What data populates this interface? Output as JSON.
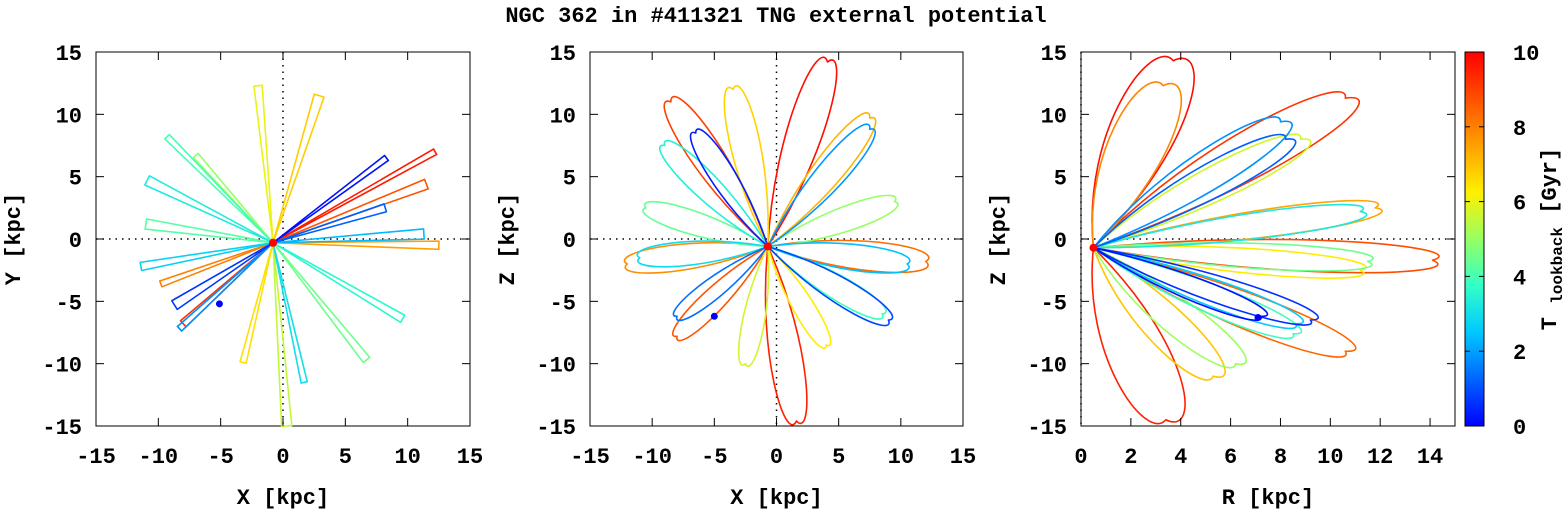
{
  "title": "NGC 362 in #411321 TNG external potential",
  "colorbar": {
    "label_main": "T",
    "label_sub": "lookback",
    "label_unit": "[Gyr]",
    "range": [
      0,
      10
    ],
    "ticks": [
      "0",
      "2",
      "4",
      "6",
      "8",
      "10"
    ],
    "tick_values": [
      0,
      2,
      4,
      6,
      8,
      10
    ],
    "colors": [
      "#0000ff",
      "#0064ff",
      "#00c8ff",
      "#32ffc8",
      "#96ff64",
      "#fff000",
      "#ffa000",
      "#ff5000",
      "#ff0000"
    ]
  },
  "markers": {
    "present_color": "#0000ff",
    "start_color": "#ff0000"
  },
  "chart_data": [
    {
      "type": "line",
      "panel": "X-Y",
      "xlabel": "X [kpc]",
      "ylabel": "Y [kpc]",
      "xlim": [
        -15,
        15
      ],
      "ylim": [
        -15,
        15
      ],
      "xticks": [
        "-15",
        "-10",
        "-5",
        "0",
        "5",
        "10",
        "15"
      ],
      "xtick_values": [
        -15,
        -10,
        -5,
        0,
        5,
        10,
        15
      ],
      "yticks": [
        "-15",
        "-10",
        "-5",
        "0",
        "5",
        "10",
        "15"
      ],
      "ytick_values": [
        -15,
        -10,
        -5,
        0,
        5,
        10,
        15
      ],
      "zero_axes": true,
      "present_position": [
        -5.1,
        -5.2
      ],
      "start_position": [
        -0.8,
        -0.3
      ],
      "series": [
        {
          "name": "radial excursion",
          "t": 9.6,
          "end": [
            12.2,
            7.0
          ]
        },
        {
          "name": "radial excursion",
          "t": 9.2,
          "end": [
            -8.0,
            -6.8
          ]
        },
        {
          "name": "radial excursion",
          "t": 8.7,
          "end": [
            11.5,
            4.4
          ]
        },
        {
          "name": "radial excursion",
          "t": 8.0,
          "end": [
            -9.8,
            -3.6
          ]
        },
        {
          "name": "radial excursion",
          "t": 7.5,
          "end": [
            12.5,
            -0.5
          ]
        },
        {
          "name": "radial excursion",
          "t": 6.8,
          "end": [
            2.9,
            11.5
          ]
        },
        {
          "name": "radial excursion",
          "t": 6.5,
          "end": [
            -3.2,
            -9.9
          ]
        },
        {
          "name": "radial excursion",
          "t": 6.0,
          "end": [
            -2.0,
            12.3
          ]
        },
        {
          "name": "radial excursion",
          "t": 5.5,
          "end": [
            0.3,
            -15.0
          ]
        },
        {
          "name": "radial excursion",
          "t": 5.0,
          "end": [
            -7.0,
            6.7
          ]
        },
        {
          "name": "radial excursion",
          "t": 4.5,
          "end": [
            6.7,
            -9.7
          ]
        },
        {
          "name": "radial excursion",
          "t": 4.2,
          "end": [
            -11.0,
            1.2
          ]
        },
        {
          "name": "radial excursion",
          "t": 4.0,
          "end": [
            -9.3,
            8.2
          ]
        },
        {
          "name": "radial excursion",
          "t": 3.6,
          "end": [
            9.6,
            -6.4
          ]
        },
        {
          "name": "radial excursion",
          "t": 3.3,
          "end": [
            -10.9,
            4.7
          ]
        },
        {
          "name": "radial excursion",
          "t": 3.0,
          "end": [
            1.7,
            -11.5
          ]
        },
        {
          "name": "radial excursion",
          "t": 2.7,
          "end": [
            -11.4,
            -2.2
          ]
        },
        {
          "name": "radial excursion",
          "t": 2.3,
          "end": [
            11.3,
            0.4
          ]
        },
        {
          "name": "radial excursion",
          "t": 1.8,
          "end": [
            -8.3,
            -7.2
          ]
        },
        {
          "name": "radial excursion",
          "t": 1.2,
          "end": [
            8.2,
            2.5
          ]
        },
        {
          "name": "radial excursion",
          "t": 0.7,
          "end": [
            -8.7,
            -5.3
          ]
        },
        {
          "name": "radial excursion",
          "t": 0.2,
          "end": [
            8.3,
            6.5
          ]
        }
      ]
    },
    {
      "type": "line",
      "panel": "X-Z",
      "xlabel": "X [kpc]",
      "ylabel": "Z [kpc]",
      "xlim": [
        -15,
        15
      ],
      "ylim": [
        -15,
        15
      ],
      "xticks": [
        "-15",
        "-10",
        "-5",
        "0",
        "5",
        "10",
        "15"
      ],
      "xtick_values": [
        -15,
        -10,
        -5,
        0,
        5,
        10,
        15
      ],
      "yticks": [
        "-15",
        "-10",
        "-5",
        "0",
        "5",
        "10",
        "15"
      ],
      "ytick_values": [
        -15,
        -10,
        -5,
        0,
        5,
        10,
        15
      ],
      "zero_axes": true,
      "present_position": [
        -5.0,
        -6.2
      ],
      "start_position": [
        -0.7,
        -0.6
      ],
      "series": [
        {
          "name": "orbit loop",
          "t": 9.8,
          "end": [
            4.1,
            14.2
          ]
        },
        {
          "name": "orbit loop",
          "t": 9.5,
          "end": [
            1.6,
            -14.6
          ]
        },
        {
          "name": "orbit loop",
          "t": 9.0,
          "end": [
            -8.5,
            11.0
          ]
        },
        {
          "name": "orbit loop",
          "t": 8.7,
          "end": [
            -8.0,
            -7.8
          ]
        },
        {
          "name": "orbit loop",
          "t": 8.3,
          "end": [
            12.0,
            -1.8
          ]
        },
        {
          "name": "orbit loop",
          "t": 7.8,
          "end": [
            -12.0,
            -2.0
          ]
        },
        {
          "name": "orbit loop",
          "t": 7.2,
          "end": [
            7.5,
            9.7
          ]
        },
        {
          "name": "orbit loop",
          "t": 6.7,
          "end": [
            -3.5,
            12.0
          ]
        },
        {
          "name": "orbit loop",
          "t": 6.3,
          "end": [
            4.0,
            -8.5
          ]
        },
        {
          "name": "orbit loop",
          "t": 5.7,
          "end": [
            -2.5,
            -10.0
          ]
        },
        {
          "name": "orbit loop",
          "t": 5.0,
          "end": [
            9.5,
            3.0
          ]
        },
        {
          "name": "orbit loop",
          "t": 4.4,
          "end": [
            -10.5,
            2.5
          ]
        },
        {
          "name": "orbit loop",
          "t": 3.9,
          "end": [
            8.5,
            -6.0
          ]
        },
        {
          "name": "orbit loop",
          "t": 3.4,
          "end": [
            -9.0,
            7.5
          ]
        },
        {
          "name": "orbit loop",
          "t": 2.9,
          "end": [
            -11.0,
            -1.5
          ]
        },
        {
          "name": "orbit loop",
          "t": 2.4,
          "end": [
            10.5,
            -2.0
          ]
        },
        {
          "name": "orbit loop",
          "t": 1.9,
          "end": [
            7.5,
            8.8
          ]
        },
        {
          "name": "orbit loop",
          "t": 1.4,
          "end": [
            -8.0,
            -6.2
          ]
        },
        {
          "name": "orbit loop",
          "t": 0.9,
          "end": [
            9.0,
            -6.5
          ]
        },
        {
          "name": "orbit loop",
          "t": 0.4,
          "end": [
            -6.5,
            8.5
          ]
        }
      ]
    },
    {
      "type": "line",
      "panel": "R-Z",
      "xlabel": "R [kpc]",
      "ylabel": "Z [kpc]",
      "xlim": [
        0,
        15
      ],
      "ylim": [
        -15,
        15
      ],
      "xticks": [
        "0",
        "2",
        "4",
        "6",
        "8",
        "10",
        "12",
        "14"
      ],
      "xtick_values": [
        0,
        2,
        4,
        6,
        8,
        10,
        12,
        14
      ],
      "yticks": [
        "-15",
        "-10",
        "-5",
        "0",
        "5",
        "10",
        "15"
      ],
      "ytick_values": [
        -15,
        -10,
        -5,
        0,
        5,
        10,
        15
      ],
      "zero_axes": true,
      "present_position": [
        7.1,
        -6.3
      ],
      "start_position": [
        0.5,
        -0.7
      ],
      "series": [
        {
          "name": "meridional loop",
          "t": 9.8,
          "end": [
            3.7,
            14.3
          ]
        },
        {
          "name": "meridional loop",
          "t": 9.5,
          "end": [
            3.4,
            -14.5
          ]
        },
        {
          "name": "meridional loop",
          "t": 9.2,
          "end": [
            10.6,
            11.3
          ]
        },
        {
          "name": "meridional loop",
          "t": 8.8,
          "end": [
            14.1,
            -1.7
          ]
        },
        {
          "name": "meridional loop",
          "t": 8.4,
          "end": [
            10.6,
            -9.0
          ]
        },
        {
          "name": "meridional loop",
          "t": 7.9,
          "end": [
            3.3,
            12.3
          ]
        },
        {
          "name": "meridional loop",
          "t": 7.4,
          "end": [
            11.8,
            2.5
          ]
        },
        {
          "name": "meridional loop",
          "t": 6.9,
          "end": [
            5.3,
            -11.0
          ]
        },
        {
          "name": "meridional loop",
          "t": 6.3,
          "end": [
            11.2,
            -2.5
          ]
        },
        {
          "name": "meridional loop",
          "t": 5.7,
          "end": [
            8.8,
            8.0
          ]
        },
        {
          "name": "meridional loop",
          "t": 5.1,
          "end": [
            6.2,
            -10.0
          ]
        },
        {
          "name": "meridional loop",
          "t": 4.5,
          "end": [
            11.5,
            -1.8
          ]
        },
        {
          "name": "meridional loop",
          "t": 3.9,
          "end": [
            8.5,
            -7.6
          ]
        },
        {
          "name": "meridional loop",
          "t": 3.2,
          "end": [
            11.2,
            2.2
          ]
        },
        {
          "name": "meridional loop",
          "t": 2.6,
          "end": [
            8.6,
            -6.8
          ]
        },
        {
          "name": "meridional loop",
          "t": 1.8,
          "end": [
            8.0,
            9.4
          ]
        },
        {
          "name": "meridional loop",
          "t": 1.2,
          "end": [
            8.2,
            8.0
          ]
        },
        {
          "name": "meridional loop",
          "t": 0.6,
          "end": [
            9.2,
            -6.5
          ]
        },
        {
          "name": "meridional loop",
          "t": 0.2,
          "end": [
            7.2,
            -6.2
          ]
        }
      ]
    }
  ]
}
